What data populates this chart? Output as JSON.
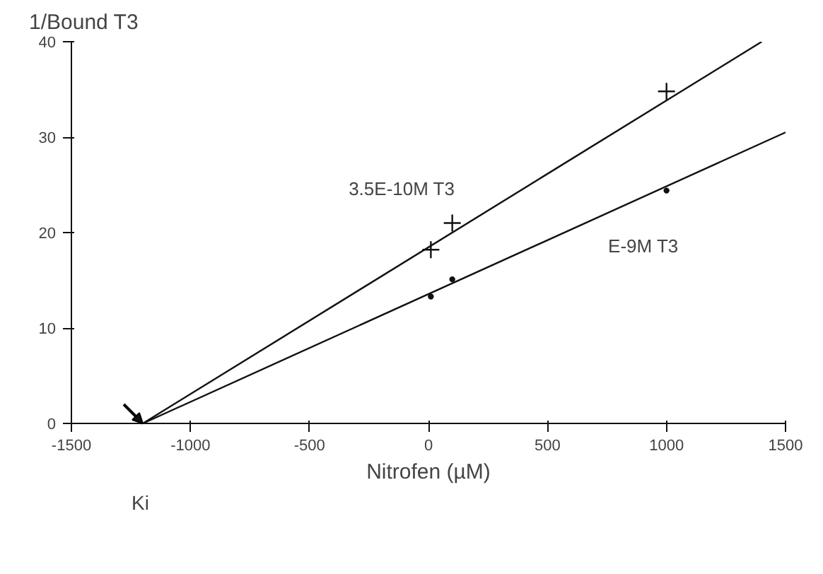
{
  "chart_data": {
    "type": "scatter",
    "xlabel": "Nitrofen (µM)",
    "ylabel": "1/Bound T3",
    "xlim": [
      -1500,
      1500
    ],
    "xticks": [
      -1500,
      -1000,
      -500,
      0,
      500,
      1000,
      1500
    ],
    "ylim": [
      0,
      40
    ],
    "yticks": [
      0,
      10,
      20,
      30,
      40
    ],
    "grid": false,
    "series": [
      {
        "type": "line",
        "color": "#111111",
        "x": [
          -1200,
          1400
        ],
        "values": [
          0,
          40
        ],
        "marker": "none"
      },
      {
        "type": "line",
        "color": "#111111",
        "x": [
          -1200,
          1500
        ],
        "values": [
          0,
          30.5
        ],
        "marker": "none"
      },
      {
        "color": "#111111",
        "x": [
          10,
          100,
          1000
        ],
        "values": [
          18.2,
          21,
          34.8
        ],
        "marker": "cross"
      },
      {
        "color": "#111111",
        "x": [
          10,
          100,
          1000
        ],
        "values": [
          13.3,
          15.1,
          24.4
        ],
        "marker": "circle"
      }
    ],
    "annotations": [
      "3.5E-10M T3",
      "E-9M T3",
      "Ki"
    ]
  }
}
